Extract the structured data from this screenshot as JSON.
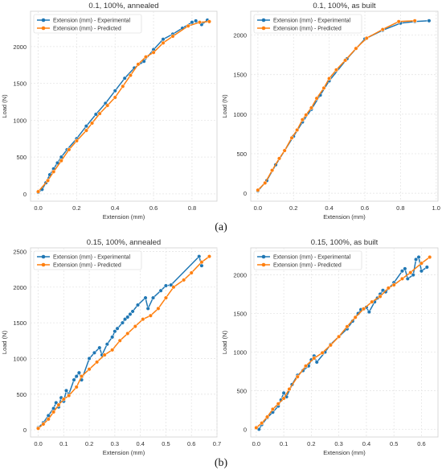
{
  "figure": {
    "captions": [
      "(a)",
      "(b)"
    ],
    "colors": {
      "experimental": "#1f77b4",
      "predicted": "#ff7f0e",
      "grid": "#e6e6e6",
      "axis": "#cfcfcf"
    }
  },
  "chart_data": [
    {
      "type": "line",
      "title": "0.1, 100%, annealed",
      "xlabel": "Extension (mm)",
      "ylabel": "Load (N)",
      "xlim": [
        -0.04,
        0.93
      ],
      "ylim": [
        -100,
        2480
      ],
      "xticks": [
        0.0,
        0.2,
        0.4,
        0.6,
        0.8
      ],
      "xtick_labels": [
        "0.0",
        "0.2",
        "0.4",
        "0.6",
        "0.8"
      ],
      "yticks": [
        0,
        500,
        1000,
        1500,
        2000
      ],
      "ytick_labels": [
        "0",
        "500",
        "1000",
        "1500",
        "2000"
      ],
      "grid": true,
      "legend_position": "top-left",
      "series": [
        {
          "name": "Extension (mm) - Experimental",
          "points": [
            [
              0.0,
              20
            ],
            [
              0.02,
              60
            ],
            [
              0.04,
              150
            ],
            [
              0.06,
              260
            ],
            [
              0.08,
              340
            ],
            [
              0.1,
              420
            ],
            [
              0.12,
              500
            ],
            [
              0.15,
              600
            ],
            [
              0.2,
              750
            ],
            [
              0.25,
              920
            ],
            [
              0.3,
              1080
            ],
            [
              0.35,
              1230
            ],
            [
              0.4,
              1400
            ],
            [
              0.45,
              1570
            ],
            [
              0.5,
              1710
            ],
            [
              0.55,
              1800
            ],
            [
              0.6,
              1960
            ],
            [
              0.65,
              2100
            ],
            [
              0.7,
              2170
            ],
            [
              0.75,
              2250
            ],
            [
              0.8,
              2330
            ],
            [
              0.82,
              2350
            ],
            [
              0.85,
              2300
            ],
            [
              0.88,
              2360
            ]
          ]
        },
        {
          "name": "Extension (mm) - Predicted",
          "points": [
            [
              0.0,
              30
            ],
            [
              0.05,
              180
            ],
            [
              0.08,
              300
            ],
            [
              0.12,
              450
            ],
            [
              0.16,
              600
            ],
            [
              0.2,
              720
            ],
            [
              0.25,
              860
            ],
            [
              0.28,
              960
            ],
            [
              0.32,
              1090
            ],
            [
              0.36,
              1200
            ],
            [
              0.4,
              1310
            ],
            [
              0.44,
              1460
            ],
            [
              0.48,
              1610
            ],
            [
              0.52,
              1760
            ],
            [
              0.56,
              1860
            ],
            [
              0.6,
              1920
            ],
            [
              0.65,
              2050
            ],
            [
              0.7,
              2140
            ],
            [
              0.78,
              2280
            ],
            [
              0.84,
              2330
            ],
            [
              0.89,
              2340
            ]
          ]
        }
      ]
    },
    {
      "type": "line",
      "title": "0.1, 100%, as built",
      "xlabel": "Extension (mm)",
      "ylabel": "Load (N)",
      "xlim": [
        -0.04,
        1.01
      ],
      "ylim": [
        -100,
        2300
      ],
      "xticks": [
        0.0,
        0.2,
        0.4,
        0.6,
        0.8,
        1.0
      ],
      "xtick_labels": [
        "0.0",
        "0.2",
        "0.4",
        "0.6",
        "0.8",
        "1.0"
      ],
      "yticks": [
        0,
        500,
        1000,
        1500,
        2000
      ],
      "ytick_labels": [
        "0",
        "500",
        "1000",
        "1500",
        "2000"
      ],
      "grid": true,
      "legend_position": "top-left",
      "series": [
        {
          "name": "Extension (mm) - Experimental",
          "points": [
            [
              0.0,
              30
            ],
            [
              0.05,
              160
            ],
            [
              0.1,
              360
            ],
            [
              0.15,
              540
            ],
            [
              0.2,
              720
            ],
            [
              0.25,
              900
            ],
            [
              0.3,
              1060
            ],
            [
              0.35,
              1240
            ],
            [
              0.4,
              1420
            ],
            [
              0.5,
              1700
            ],
            [
              0.6,
              1950
            ],
            [
              0.7,
              2060
            ],
            [
              0.8,
              2150
            ],
            [
              0.88,
              2170
            ],
            [
              0.96,
              2180
            ]
          ]
        },
        {
          "name": "Extension (mm) - Predicted",
          "points": [
            [
              0.0,
              40
            ],
            [
              0.04,
              130
            ],
            [
              0.08,
              290
            ],
            [
              0.12,
              440
            ],
            [
              0.15,
              540
            ],
            [
              0.19,
              700
            ],
            [
              0.22,
              800
            ],
            [
              0.25,
              930
            ],
            [
              0.27,
              990
            ],
            [
              0.3,
              1080
            ],
            [
              0.33,
              1200
            ],
            [
              0.37,
              1330
            ],
            [
              0.4,
              1450
            ],
            [
              0.44,
              1560
            ],
            [
              0.49,
              1680
            ],
            [
              0.55,
              1830
            ],
            [
              0.61,
              1960
            ],
            [
              0.7,
              2070
            ],
            [
              0.79,
              2170
            ],
            [
              0.88,
              2180
            ]
          ]
        }
      ]
    },
    {
      "type": "line",
      "title": "0.15, 100%, annealed",
      "xlabel": "Extension (mm)",
      "ylabel": "Load (N)",
      "xlim": [
        -0.03,
        0.7
      ],
      "ylim": [
        -100,
        2550
      ],
      "xticks": [
        0.0,
        0.1,
        0.2,
        0.3,
        0.4,
        0.5,
        0.6,
        0.7
      ],
      "xtick_labels": [
        "0.0",
        "0.1",
        "0.2",
        "0.3",
        "0.4",
        "0.5",
        "0.6",
        "0.7"
      ],
      "yticks": [
        0,
        500,
        1000,
        1500,
        2000,
        2500
      ],
      "ytick_labels": [
        "0",
        "500",
        "1000",
        "1500",
        "2000",
        "2500"
      ],
      "grid": true,
      "legend_position": "top-left",
      "series": [
        {
          "name": "Extension (mm) - Experimental",
          "points": [
            [
              0.0,
              30
            ],
            [
              0.02,
              100
            ],
            [
              0.04,
              200
            ],
            [
              0.06,
              300
            ],
            [
              0.07,
              380
            ],
            [
              0.08,
              320
            ],
            [
              0.09,
              450
            ],
            [
              0.1,
              400
            ],
            [
              0.11,
              550
            ],
            [
              0.12,
              500
            ],
            [
              0.14,
              700
            ],
            [
              0.15,
              750
            ],
            [
              0.16,
              800
            ],
            [
              0.17,
              700
            ],
            [
              0.2,
              1000
            ],
            [
              0.22,
              1080
            ],
            [
              0.24,
              1150
            ],
            [
              0.25,
              1050
            ],
            [
              0.27,
              1200
            ],
            [
              0.29,
              1300
            ],
            [
              0.3,
              1380
            ],
            [
              0.31,
              1420
            ],
            [
              0.33,
              1500
            ],
            [
              0.34,
              1550
            ],
            [
              0.35,
              1580
            ],
            [
              0.36,
              1620
            ],
            [
              0.37,
              1660
            ],
            [
              0.39,
              1750
            ],
            [
              0.42,
              1850
            ],
            [
              0.43,
              1700
            ],
            [
              0.45,
              1850
            ],
            [
              0.48,
              1950
            ],
            [
              0.5,
              2020
            ],
            [
              0.52,
              2030
            ],
            [
              0.63,
              2430
            ],
            [
              0.64,
              2300
            ]
          ]
        },
        {
          "name": "Extension (mm) - Predicted",
          "points": [
            [
              0.0,
              20
            ],
            [
              0.02,
              80
            ],
            [
              0.04,
              150
            ],
            [
              0.06,
              250
            ],
            [
              0.08,
              350
            ],
            [
              0.1,
              430
            ],
            [
              0.12,
              480
            ],
            [
              0.15,
              600
            ],
            [
              0.17,
              750
            ],
            [
              0.2,
              850
            ],
            [
              0.23,
              950
            ],
            [
              0.26,
              1050
            ],
            [
              0.29,
              1120
            ],
            [
              0.32,
              1250
            ],
            [
              0.35,
              1350
            ],
            [
              0.38,
              1450
            ],
            [
              0.41,
              1550
            ],
            [
              0.44,
              1600
            ],
            [
              0.47,
              1700
            ],
            [
              0.5,
              1850
            ],
            [
              0.53,
              2000
            ],
            [
              0.57,
              2100
            ],
            [
              0.6,
              2200
            ],
            [
              0.64,
              2350
            ],
            [
              0.67,
              2430
            ]
          ]
        }
      ]
    },
    {
      "type": "line",
      "title": "0.15, 100%, as built",
      "xlabel": "Extension (mm)",
      "ylabel": "Load (N)",
      "xlim": [
        -0.02,
        0.66
      ],
      "ylim": [
        -100,
        2350
      ],
      "xticks": [
        0.0,
        0.1,
        0.2,
        0.3,
        0.4,
        0.5,
        0.6
      ],
      "xtick_labels": [
        "0.0",
        "0.1",
        "0.2",
        "0.3",
        "0.4",
        "0.5",
        "0.6"
      ],
      "yticks": [
        0,
        500,
        1000,
        1500,
        2000
      ],
      "ytick_labels": [
        "0",
        "500",
        "1000",
        "1500",
        "2000"
      ],
      "grid": true,
      "legend_position": "top-left",
      "series": [
        {
          "name": "Extension (mm) - Experimental",
          "points": [
            [
              0.01,
              0
            ],
            [
              0.02,
              60
            ],
            [
              0.04,
              150
            ],
            [
              0.06,
              220
            ],
            [
              0.08,
              300
            ],
            [
              0.09,
              380
            ],
            [
              0.1,
              470
            ],
            [
              0.11,
              420
            ],
            [
              0.13,
              580
            ],
            [
              0.15,
              700
            ],
            [
              0.17,
              760
            ],
            [
              0.19,
              820
            ],
            [
              0.2,
              900
            ],
            [
              0.21,
              950
            ],
            [
              0.22,
              870
            ],
            [
              0.25,
              1000
            ],
            [
              0.27,
              1100
            ],
            [
              0.3,
              1200
            ],
            [
              0.33,
              1300
            ],
            [
              0.35,
              1400
            ],
            [
              0.37,
              1500
            ],
            [
              0.38,
              1550
            ],
            [
              0.4,
              1580
            ],
            [
              0.41,
              1520
            ],
            [
              0.43,
              1650
            ],
            [
              0.44,
              1700
            ],
            [
              0.45,
              1750
            ],
            [
              0.46,
              1800
            ],
            [
              0.47,
              1780
            ],
            [
              0.5,
              1900
            ],
            [
              0.53,
              2050
            ],
            [
              0.54,
              2080
            ],
            [
              0.55,
              1950
            ],
            [
              0.57,
              2000
            ],
            [
              0.58,
              2200
            ],
            [
              0.59,
              2230
            ],
            [
              0.6,
              2050
            ],
            [
              0.62,
              2100
            ]
          ]
        },
        {
          "name": "Extension (mm) - Predicted",
          "points": [
            [
              0.0,
              20
            ],
            [
              0.02,
              80
            ],
            [
              0.04,
              160
            ],
            [
              0.06,
              260
            ],
            [
              0.08,
              330
            ],
            [
              0.1,
              400
            ],
            [
              0.12,
              520
            ],
            [
              0.15,
              680
            ],
            [
              0.18,
              820
            ],
            [
              0.21,
              920
            ],
            [
              0.24,
              990
            ],
            [
              0.27,
              1090
            ],
            [
              0.3,
              1200
            ],
            [
              0.33,
              1330
            ],
            [
              0.36,
              1450
            ],
            [
              0.39,
              1560
            ],
            [
              0.42,
              1650
            ],
            [
              0.45,
              1720
            ],
            [
              0.48,
              1830
            ],
            [
              0.5,
              1870
            ],
            [
              0.53,
              1950
            ],
            [
              0.56,
              2030
            ],
            [
              0.6,
              2150
            ],
            [
              0.63,
              2230
            ]
          ]
        }
      ]
    }
  ]
}
